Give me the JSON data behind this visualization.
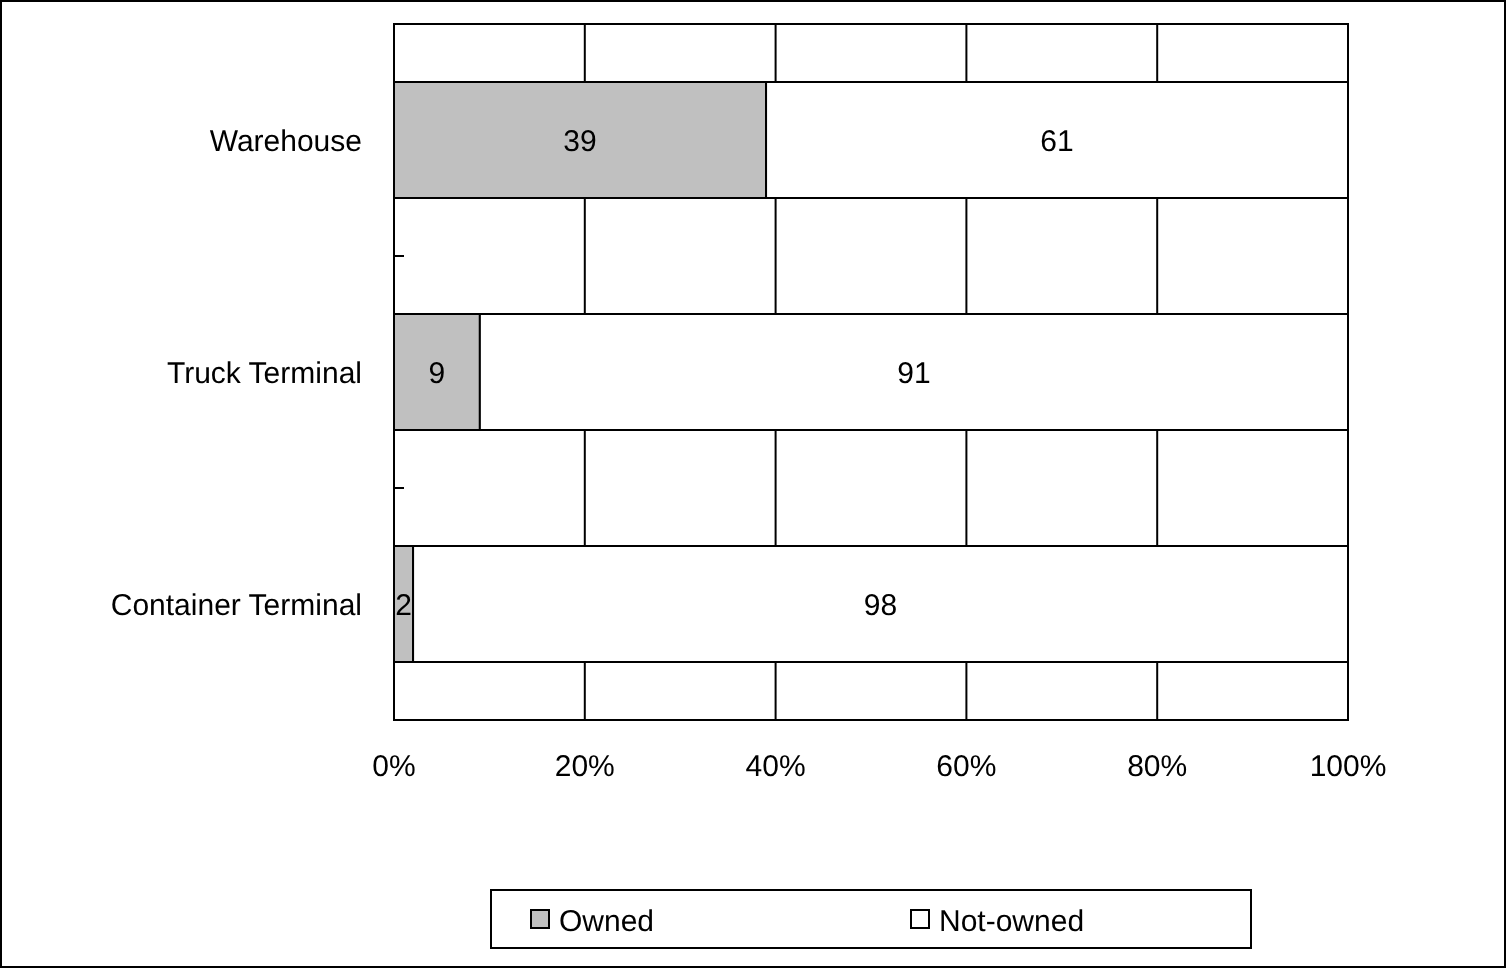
{
  "chart_data": {
    "type": "bar",
    "orientation": "horizontal",
    "stacked": true,
    "categories": [
      "Warehouse",
      "Truck Terminal",
      "Container Terminal"
    ],
    "series": [
      {
        "name": "Owned",
        "color": "#c0c0c0",
        "values": [
          39,
          9,
          2
        ]
      },
      {
        "name": "Not-owned",
        "color": "#ffffff",
        "values": [
          61,
          91,
          98
        ]
      }
    ],
    "xlim": [
      0,
      100
    ],
    "xticks": [
      {
        "value": 0,
        "label": "0%"
      },
      {
        "value": 20,
        "label": "20%"
      },
      {
        "value": 40,
        "label": "40%"
      },
      {
        "value": 60,
        "label": "60%"
      },
      {
        "value": 80,
        "label": "80%"
      },
      {
        "value": 100,
        "label": "100%"
      }
    ],
    "grid": "x",
    "legend": "bottom",
    "data_labels": true
  }
}
